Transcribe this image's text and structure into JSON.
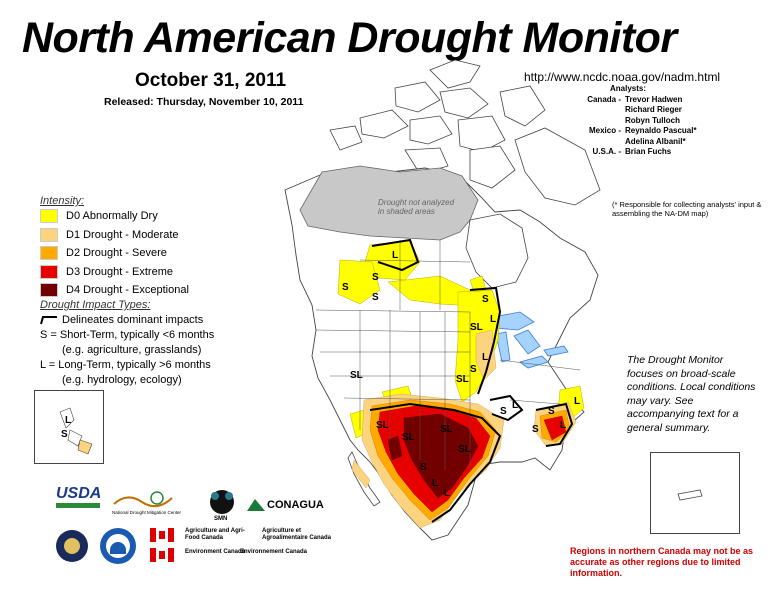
{
  "title": "North American Drought Monitor",
  "date": "October 31, 2011",
  "released": "Released:  Thursday, November 10, 2011",
  "url": "http://www.ncdc.noaa.gov/nadm.html",
  "analysts": {
    "header": "Analysts:",
    "rows": [
      {
        "country": "Canada -",
        "names": [
          "Trevor Hadwen",
          "Richard Rieger",
          "Robyn Tulloch"
        ]
      },
      {
        "country": "Mexico -",
        "names": [
          "Reynaldo Pascual*",
          "Adelina Albanil*"
        ]
      },
      {
        "country": "U.S.A. -",
        "names": [
          "Brian Fuchs"
        ]
      }
    ]
  },
  "responsible_note": "(* Responsible for collecting analysts' input & assembling the NA-DM map)",
  "legend": {
    "intensity_label": "Intensity:",
    "items": [
      {
        "label": "D0 Abnormally Dry",
        "color": "#ffff00"
      },
      {
        "label": "D1 Drought - Moderate",
        "color": "#fcd37f"
      },
      {
        "label": "D2 Drought - Severe",
        "color": "#ffaa00"
      },
      {
        "label": "D3 Drought - Extreme",
        "color": "#e60000"
      },
      {
        "label": "D4 Drought - Exceptional",
        "color": "#730000"
      }
    ],
    "impact_label": "Drought Impact Types:",
    "impact_lines": [
      "Delineates dominant impacts",
      "S = Short-Term, typically <6 months",
      "(e.g. agriculture, grasslands)",
      "L = Long-Term, typically >6 months",
      "(e.g. hydrology, ecology)"
    ]
  },
  "map": {
    "not_analyzed_label": "Drought not analyzed in shaded areas",
    "labels": [
      "S",
      "L",
      "S",
      "S",
      "SL",
      "L",
      "S",
      "SL",
      "L",
      "S",
      "SL",
      "SL",
      "SL",
      "SL",
      "S",
      "L",
      "S",
      "L",
      "S",
      "L",
      "S",
      "L",
      "SL",
      "L"
    ]
  },
  "dm_note": "The Drought Monitor focuses on broad-scale conditions.  Local conditions may vary.  See accompanying text for a general summary.",
  "canada_note": "Regions in northern Canada may not be as accurate as other regions due to limited information.",
  "logos": {
    "usda": "USDA",
    "ndmc": "National Drought Mitigation Center",
    "smn": "SMN",
    "conagua": "CONAGUA",
    "agri_en": "Agriculture and Agri-Food Canada",
    "agri_fr": "Agriculture et Agroalimentaire Canada",
    "env_en": "Environment Canada",
    "env_fr": "Environnement Canada"
  }
}
